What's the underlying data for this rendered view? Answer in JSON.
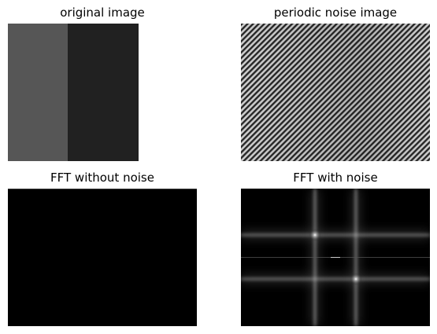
{
  "panels": [
    {
      "title": "original image"
    },
    {
      "title": "periodic noise image"
    },
    {
      "title": "FFT without noise"
    },
    {
      "title": "FFT with noise"
    }
  ],
  "colors": {
    "original_left": "#565656",
    "original_right": "#212121",
    "fft_background": "#000000"
  }
}
